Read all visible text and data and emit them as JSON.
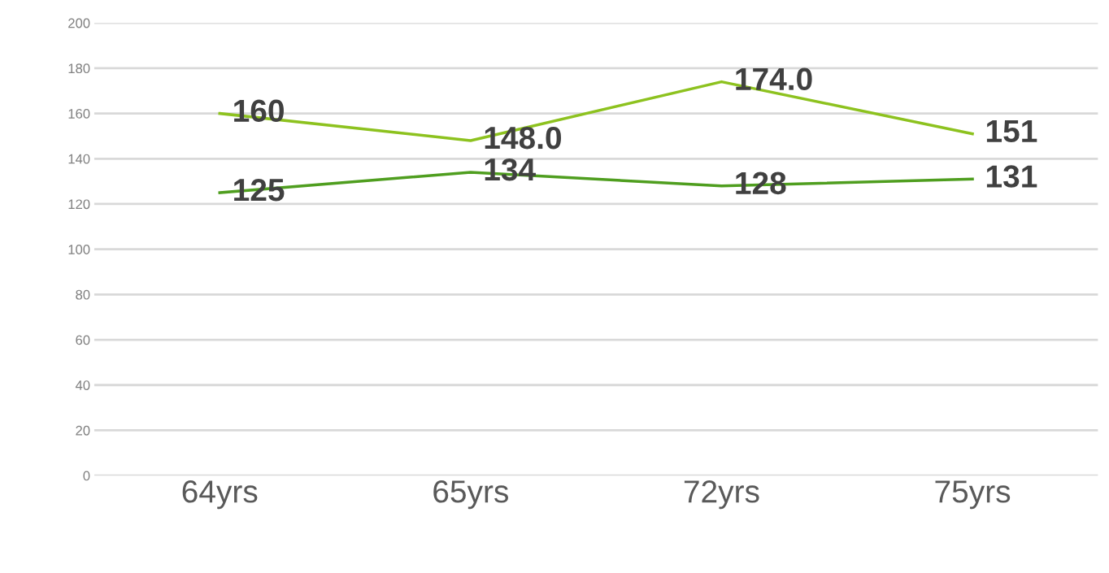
{
  "chart_data": {
    "type": "line",
    "categories": [
      "64yrs",
      "65yrs",
      "72yrs",
      "75yrs"
    ],
    "series": [
      {
        "color": "#8dc21f",
        "values": [
          160,
          148.0,
          174.0,
          151
        ],
        "value_labels": [
          "160",
          "148.0",
          "174.0",
          "151"
        ]
      },
      {
        "color": "#4f9e1f",
        "values": [
          125,
          134,
          128,
          131
        ],
        "value_labels": [
          "125",
          "134",
          "128",
          "131"
        ]
      }
    ],
    "ylim": [
      0,
      200
    ],
    "yticks": [
      0,
      20,
      40,
      60,
      80,
      100,
      120,
      140,
      160,
      180,
      200
    ],
    "grid": "y",
    "marker": "none",
    "line_style": "solid"
  }
}
